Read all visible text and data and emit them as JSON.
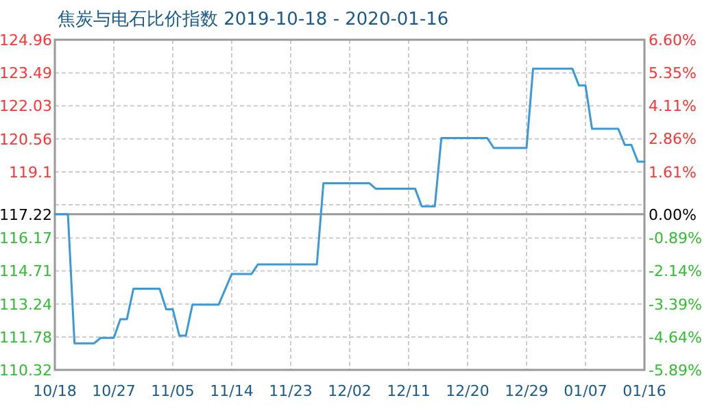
{
  "chart_data": {
    "type": "line",
    "title": "焦炭与电石比价指数 2019-10-18 - 2020-01-16",
    "x": [
      "2019-10-18",
      "2019-10-20",
      "2019-10-21",
      "2019-10-24",
      "2019-10-25",
      "2019-10-27",
      "2019-10-28",
      "2019-10-29",
      "2019-10-30",
      "2019-11-03",
      "2019-11-04",
      "2019-11-05",
      "2019-11-06",
      "2019-11-07",
      "2019-11-08",
      "2019-11-12",
      "2019-11-14",
      "2019-11-17",
      "2019-11-18",
      "2019-11-27",
      "2019-11-28",
      "2019-12-05",
      "2019-12-06",
      "2019-12-12",
      "2019-12-13",
      "2019-12-15",
      "2019-12-16",
      "2019-12-23",
      "2019-12-24",
      "2019-12-29",
      "2019-12-30",
      "2020-01-05",
      "2020-01-06",
      "2020-01-07",
      "2020-01-08",
      "2020-01-12",
      "2020-01-13",
      "2020-01-14",
      "2020-01-15",
      "2020-01-16"
    ],
    "series": [
      {
        "color": "#3a9ad9",
        "values": [
          117.22,
          117.22,
          111.5,
          111.5,
          111.74,
          111.74,
          112.57,
          112.57,
          113.92,
          113.92,
          113.01,
          113.01,
          111.84,
          111.84,
          113.21,
          113.21,
          114.57,
          114.57,
          115.0,
          115.0,
          118.6,
          118.6,
          118.35,
          118.35,
          117.57,
          117.57,
          120.6,
          120.6,
          120.16,
          120.16,
          123.68,
          123.68,
          122.93,
          122.93,
          121.01,
          121.01,
          120.3,
          120.3,
          119.55,
          119.55
        ]
      }
    ],
    "xlim": [
      "2019-10-18",
      "2020-01-16"
    ],
    "xticks": [
      {
        "value": "2019-10-18",
        "label": "10/18"
      },
      {
        "value": "2019-10-27",
        "label": "10/27"
      },
      {
        "value": "2019-11-05",
        "label": "11/05"
      },
      {
        "value": "2019-11-14",
        "label": "11/14"
      },
      {
        "value": "2019-11-23",
        "label": "11/23"
      },
      {
        "value": "2019-12-02",
        "label": "12/02"
      },
      {
        "value": "2019-12-11",
        "label": "12/11"
      },
      {
        "value": "2019-12-20",
        "label": "12/20"
      },
      {
        "value": "2019-12-29",
        "label": "12/29"
      },
      {
        "value": "2020-01-07",
        "label": "01/07"
      },
      {
        "value": "2020-01-16",
        "label": "01/16"
      }
    ],
    "ylim": [
      110.32,
      124.96
    ],
    "yticks": [
      110.32,
      111.78,
      113.24,
      114.71,
      116.17,
      117.22,
      {
        "value": 117.64,
        "label": null
      },
      119.1,
      120.56,
      122.03,
      123.49,
      124.96
    ],
    "y2lim": [
      -5.89,
      6.6
    ],
    "y2ticks": [
      {
        "value": -5.89,
        "label": "-5.89%"
      },
      {
        "value": -4.64,
        "label": "-4.64%"
      },
      {
        "value": -3.39,
        "label": "-3.39%"
      },
      {
        "value": -2.14,
        "label": "-2.14%"
      },
      {
        "value": -0.89,
        "label": "-0.89%"
      },
      {
        "value": 0,
        "label": "0.00%"
      },
      {
        "value": 1.61,
        "label": "1.61%"
      },
      {
        "value": 2.86,
        "label": "2.86%"
      },
      {
        "value": 4.11,
        "label": "4.11%"
      },
      {
        "value": 5.35,
        "label": "5.35%"
      },
      {
        "value": 6.6,
        "label": "6.60%"
      }
    ],
    "ref_lines": [
      {
        "axis": "y",
        "value": 117.22,
        "color": "#999999"
      }
    ],
    "grid": true
  }
}
